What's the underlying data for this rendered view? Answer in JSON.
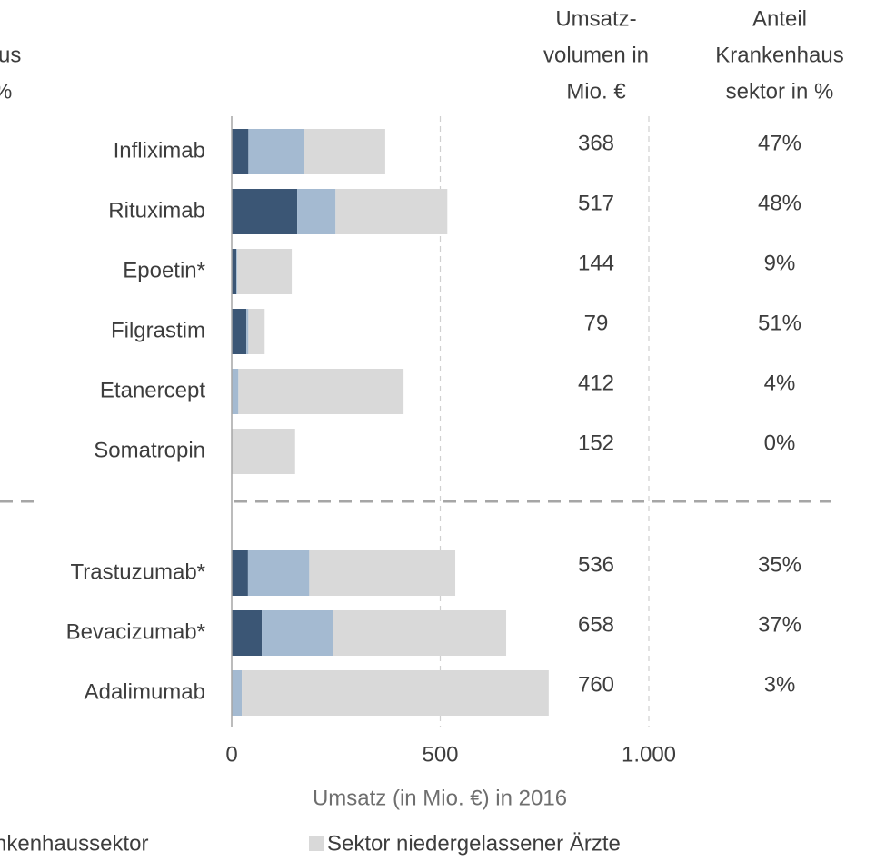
{
  "chart_data": {
    "type": "stacked-bar",
    "orientation": "horizontal",
    "corner_texts": [
      "us",
      "%"
    ],
    "categories": [
      "Infliximab",
      "Rituximab",
      "Epoetin*",
      "Filgrastim",
      "Etanercept",
      "Somatropin",
      "Trastuzumab*",
      "Bevacizumab*",
      "Adalimumab"
    ],
    "series": [
      {
        "color": "#3b5675",
        "values": [
          40,
          157,
          11,
          35,
          0,
          0,
          39,
          72,
          0
        ]
      },
      {
        "name": "nkenhaussektor",
        "color": "#a4bad1",
        "values": [
          133,
          92,
          2,
          5,
          16,
          0,
          147,
          171,
          24
        ]
      },
      {
        "name": "Sektor niedergelassener Ärzte",
        "color": "#d9d9d9",
        "values": [
          195,
          268,
          131,
          39,
          396,
          152,
          350,
          415,
          736
        ]
      }
    ],
    "xlim": [
      0,
      1000
    ],
    "xticks": [
      0,
      500,
      {
        "value": 1000,
        "label": "1.000"
      }
    ],
    "xlabel": "Umsatz (in Mio. €) in 2016",
    "grid": true,
    "columns": [
      {
        "header": [
          "Umsatz-",
          "volumen in",
          "Mio. €"
        ],
        "values": [
          368,
          517,
          144,
          79,
          412,
          152,
          536,
          658,
          760
        ]
      },
      {
        "header": [
          "Anteil",
          "Krankenhaus",
          "sektor in %"
        ],
        "values": [
          47,
          48,
          9,
          51,
          4,
          0,
          35,
          37,
          3
        ],
        "value_labels": [
          "47%",
          "48%",
          "9%",
          "51%",
          "4%",
          "0%",
          "35%",
          "37%",
          "3%"
        ]
      }
    ]
  }
}
